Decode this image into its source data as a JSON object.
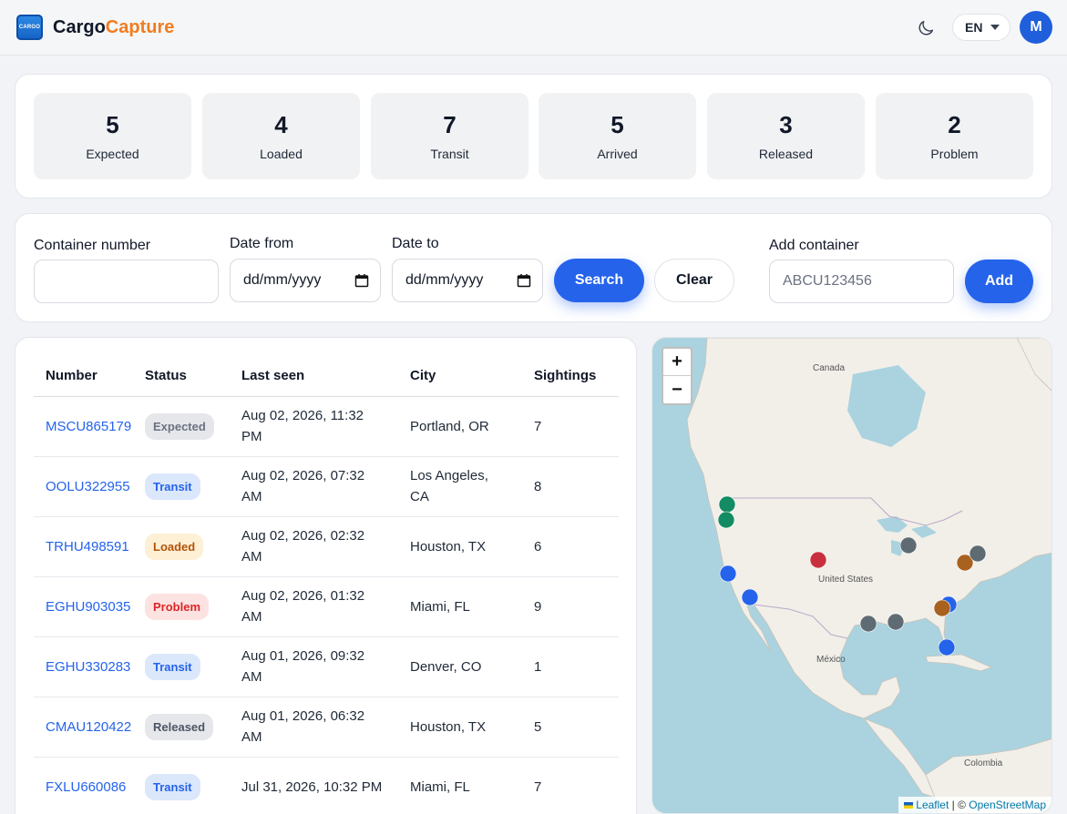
{
  "app": {
    "logo_text": "CARGO",
    "brand_part1": "Cargo",
    "brand_part2": "Capture",
    "language": "EN",
    "avatar_initial": "M"
  },
  "stats": [
    {
      "value": "5",
      "label": "Expected"
    },
    {
      "value": "4",
      "label": "Loaded"
    },
    {
      "value": "7",
      "label": "Transit"
    },
    {
      "value": "5",
      "label": "Arrived"
    },
    {
      "value": "3",
      "label": "Released"
    },
    {
      "value": "2",
      "label": "Problem"
    }
  ],
  "filters": {
    "container_label": "Container number",
    "container_value": "",
    "date_from_label": "Date from",
    "date_from_placeholder": "dd/mm/yyyy",
    "date_to_label": "Date to",
    "date_to_placeholder": "dd/mm/yyyy",
    "search_label": "Search",
    "clear_label": "Clear",
    "add_label": "Add container",
    "add_placeholder": "ABCU123456",
    "add_button": "Add"
  },
  "table": {
    "headers": [
      "Number",
      "Status",
      "Last seen",
      "City",
      "Sightings"
    ],
    "rows": [
      {
        "number": "MSCU865179",
        "status": "Expected",
        "last_seen_1": "Aug 02, 2026, 11:32",
        "last_seen_2": "PM",
        "city_1": "Portland, OR",
        "city_2": "",
        "sightings": "7"
      },
      {
        "number": "OOLU322955",
        "status": "Transit",
        "last_seen_1": "Aug 02, 2026, 07:32",
        "last_seen_2": "AM",
        "city_1": "Los Angeles,",
        "city_2": "CA",
        "sightings": "8"
      },
      {
        "number": "TRHU498591",
        "status": "Loaded",
        "last_seen_1": "Aug 02, 2026, 02:32",
        "last_seen_2": "AM",
        "city_1": "Houston, TX",
        "city_2": "",
        "sightings": "6"
      },
      {
        "number": "EGHU903035",
        "status": "Problem",
        "last_seen_1": "Aug 02, 2026, 01:32",
        "last_seen_2": "AM",
        "city_1": "Miami, FL",
        "city_2": "",
        "sightings": "9"
      },
      {
        "number": "EGHU330283",
        "status": "Transit",
        "last_seen_1": "Aug 01, 2026, 09:32",
        "last_seen_2": "AM",
        "city_1": "Denver, CO",
        "city_2": "",
        "sightings": "1"
      },
      {
        "number": "CMAU120422",
        "status": "Released",
        "last_seen_1": "Aug 01, 2026, 06:32",
        "last_seen_2": "AM",
        "city_1": "Houston, TX",
        "city_2": "",
        "sightings": "5"
      },
      {
        "number": "FXLU660086",
        "status": "Transit",
        "last_seen_1": "Jul 31, 2026, 10:32 PM",
        "last_seen_2": "",
        "city_1": "Miami, FL",
        "city_2": "",
        "sightings": "7"
      }
    ]
  },
  "status_colors": {
    "Expected": {
      "bg": "#e5e7eb",
      "fg": "#6b7280"
    },
    "Transit": {
      "bg": "#dbe7fb",
      "fg": "#2563eb"
    },
    "Loaded": {
      "bg": "#fdf0d5",
      "fg": "#b45309"
    },
    "Problem": {
      "bg": "#fde2e2",
      "fg": "#dc2626"
    },
    "Released": {
      "bg": "#e5e7eb",
      "fg": "#4b5563"
    }
  },
  "map": {
    "zoom_in": "+",
    "zoom_out": "−",
    "labels": {
      "canada": "Canada",
      "us": "United States",
      "mexico": "México",
      "colombia": "Colombia"
    },
    "attribution_leaflet": "Leaflet",
    "attribution_sep": " | © ",
    "attribution_osm": "OpenStreetMap",
    "marker_colors": {
      "green": "#148c63",
      "blue": "#2563eb",
      "red": "#c9303d",
      "gray": "#5f6b73",
      "orange": "#a8611f"
    }
  }
}
